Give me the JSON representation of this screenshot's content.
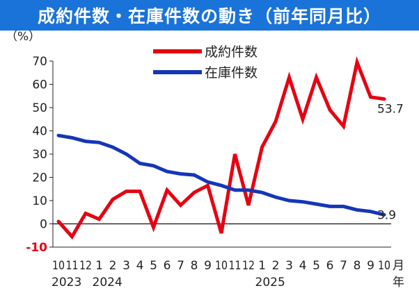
{
  "title": "成約件数・在庫件数の動き（前年同月比）",
  "chart_data": {
    "type": "line",
    "ylabel": "（%）",
    "ylim": [
      -10,
      70
    ],
    "yticks": [
      -10,
      0,
      10,
      20,
      30,
      40,
      50,
      60,
      70
    ],
    "x_month_labels": [
      "10",
      "11",
      "12",
      "1",
      "2",
      "3",
      "4",
      "5",
      "6",
      "7",
      "8",
      "9",
      "10",
      "11",
      "12",
      "1",
      "2",
      "3",
      "4",
      "5",
      "6",
      "7",
      "8",
      "9",
      "10"
    ],
    "x_year_labels": [
      {
        "index": 0,
        "label": "2023"
      },
      {
        "index": 3,
        "label": "2024"
      },
      {
        "index": 15,
        "label": "2025"
      }
    ],
    "x_unit": "月",
    "x_year_unit": "年",
    "legend_position": "top-center",
    "series": [
      {
        "name": "成約件数",
        "color": "#e60012",
        "values": [
          1,
          -5.5,
          4.5,
          2,
          10.5,
          14,
          14,
          -1.5,
          14.5,
          8,
          13.5,
          16.5,
          -4,
          30,
          8,
          33,
          44,
          63,
          45,
          63,
          49,
          42,
          69.5,
          54.5,
          53.7
        ],
        "end_label": "53.7"
      },
      {
        "name": "在庫件数",
        "color": "#1536b8",
        "values": [
          38,
          37,
          35.5,
          35,
          33,
          30,
          26,
          25,
          22.5,
          21.5,
          21,
          18,
          16.5,
          14.5,
          14.5,
          13.5,
          11.5,
          10,
          9.5,
          8.5,
          7.5,
          7.5,
          6,
          5.3,
          3.9
        ],
        "end_label": "3.9"
      }
    ]
  }
}
